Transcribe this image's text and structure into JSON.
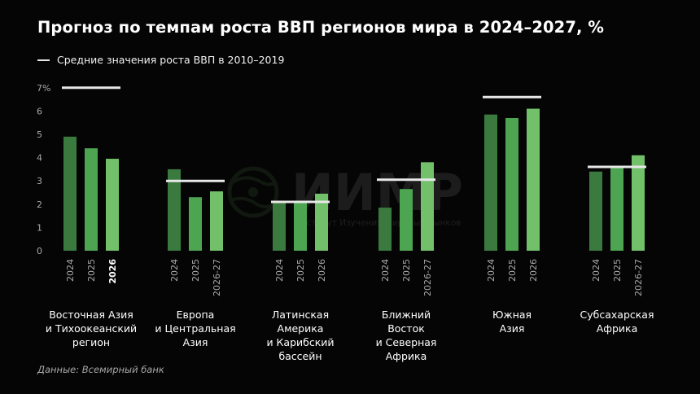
{
  "title": "Прогноз по темпам роста ВВП регионов мира в 2024–2027, %",
  "legend_label": "Средние значения роста ВВП в 2010–2019",
  "source": "Данные: Всемирный банк",
  "watermark": {
    "text": "ИИМР",
    "subtext": "Институт Изучения Мировых Рынков"
  },
  "colors": {
    "bar_dark": "#3a7a3e",
    "bar_mid": "#4da552",
    "bar_light": "#72c06a",
    "avg_line": "#e8e8e8",
    "background": "#050505"
  },
  "chart_data": {
    "type": "bar",
    "y_tick_labels": [
      "0",
      "1",
      "2",
      "3",
      "4",
      "5",
      "6",
      "7%"
    ],
    "ylim": [
      0,
      7
    ],
    "grid": false,
    "legend_position": "top-left",
    "groups": [
      {
        "label": [
          "Восточная Азия",
          "и Тихоокеанский",
          "регион"
        ],
        "categories": [
          "2024",
          "2025",
          "2026"
        ],
        "values": [
          4.9,
          4.4,
          3.95
        ],
        "average_2010_2019": 7.0,
        "highlight_last": true
      },
      {
        "label": [
          "Европа",
          "и Центральная",
          "Азия"
        ],
        "categories": [
          "2024",
          "2025",
          "2026-27"
        ],
        "values": [
          3.5,
          2.3,
          2.55
        ],
        "average_2010_2019": 3.0,
        "highlight_last": false
      },
      {
        "label": [
          "Латинская",
          "Америка",
          "и Карибский",
          "бассейн"
        ],
        "categories": [
          "2024",
          "2025",
          "2026"
        ],
        "values": [
          2.15,
          2.1,
          2.45
        ],
        "average_2010_2019": 2.1,
        "highlight_last": false
      },
      {
        "label": [
          "Ближний",
          "Восток",
          "и Северная",
          "Африка"
        ],
        "categories": [
          "2024",
          "2025",
          "2026-27"
        ],
        "values": [
          1.85,
          2.65,
          3.8
        ],
        "average_2010_2019": 3.05,
        "highlight_last": false
      },
      {
        "label": [
          "Южная",
          "Азия"
        ],
        "categories": [
          "2024",
          "2025",
          "2026"
        ],
        "values": [
          5.85,
          5.7,
          6.1
        ],
        "average_2010_2019": 6.6,
        "highlight_last": false
      },
      {
        "label": [
          "Субсахарская",
          "Африка"
        ],
        "categories": [
          "2024",
          "2025",
          "2026-27"
        ],
        "values": [
          3.4,
          3.6,
          4.1
        ],
        "average_2010_2019": 3.6,
        "highlight_last": false
      }
    ]
  }
}
